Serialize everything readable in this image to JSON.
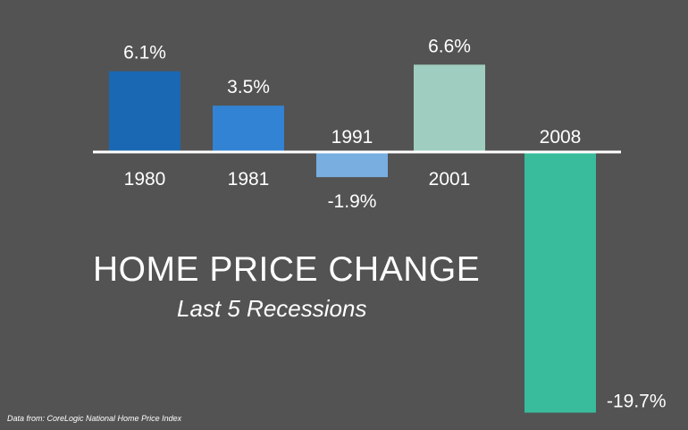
{
  "chart_data": {
    "type": "bar",
    "title": "HOME PRICE CHANGE",
    "subtitle": "Last 5 Recessions",
    "categories": [
      "1980",
      "1981",
      "1991",
      "2001",
      "2008"
    ],
    "values": [
      6.1,
      3.5,
      -1.9,
      6.6,
      -19.7
    ],
    "value_labels": [
      "6.1%",
      "3.5%",
      "-1.9%",
      "6.6%",
      "-19.7%"
    ],
    "colors": [
      "#1a68b3",
      "#3383d4",
      "#78aee0",
      "#9fcdbf",
      "#38bc9c"
    ],
    "xlabel": "",
    "ylabel": "",
    "grid": false,
    "baseline_color": "#ffffff"
  },
  "source_note": "Data from: CoreLogic National Home Price Index"
}
